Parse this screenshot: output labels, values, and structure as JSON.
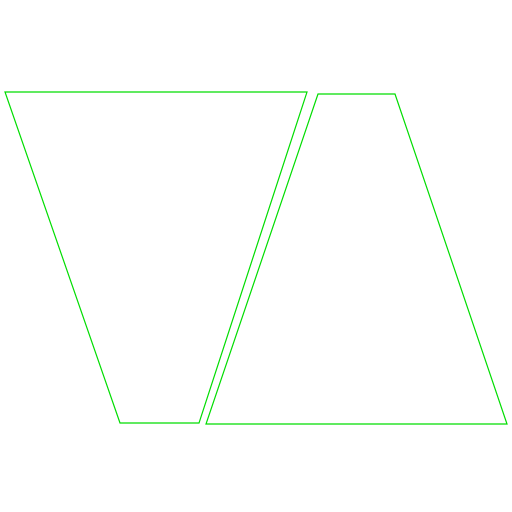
{
  "diagram": {
    "background": "#ffffff",
    "stroke_color": "#00dd00",
    "shapes": [
      {
        "kind": "trapezoid",
        "orientation": "wide-top"
      },
      {
        "kind": "trapezoid",
        "orientation": "wide-bottom"
      }
    ]
  }
}
